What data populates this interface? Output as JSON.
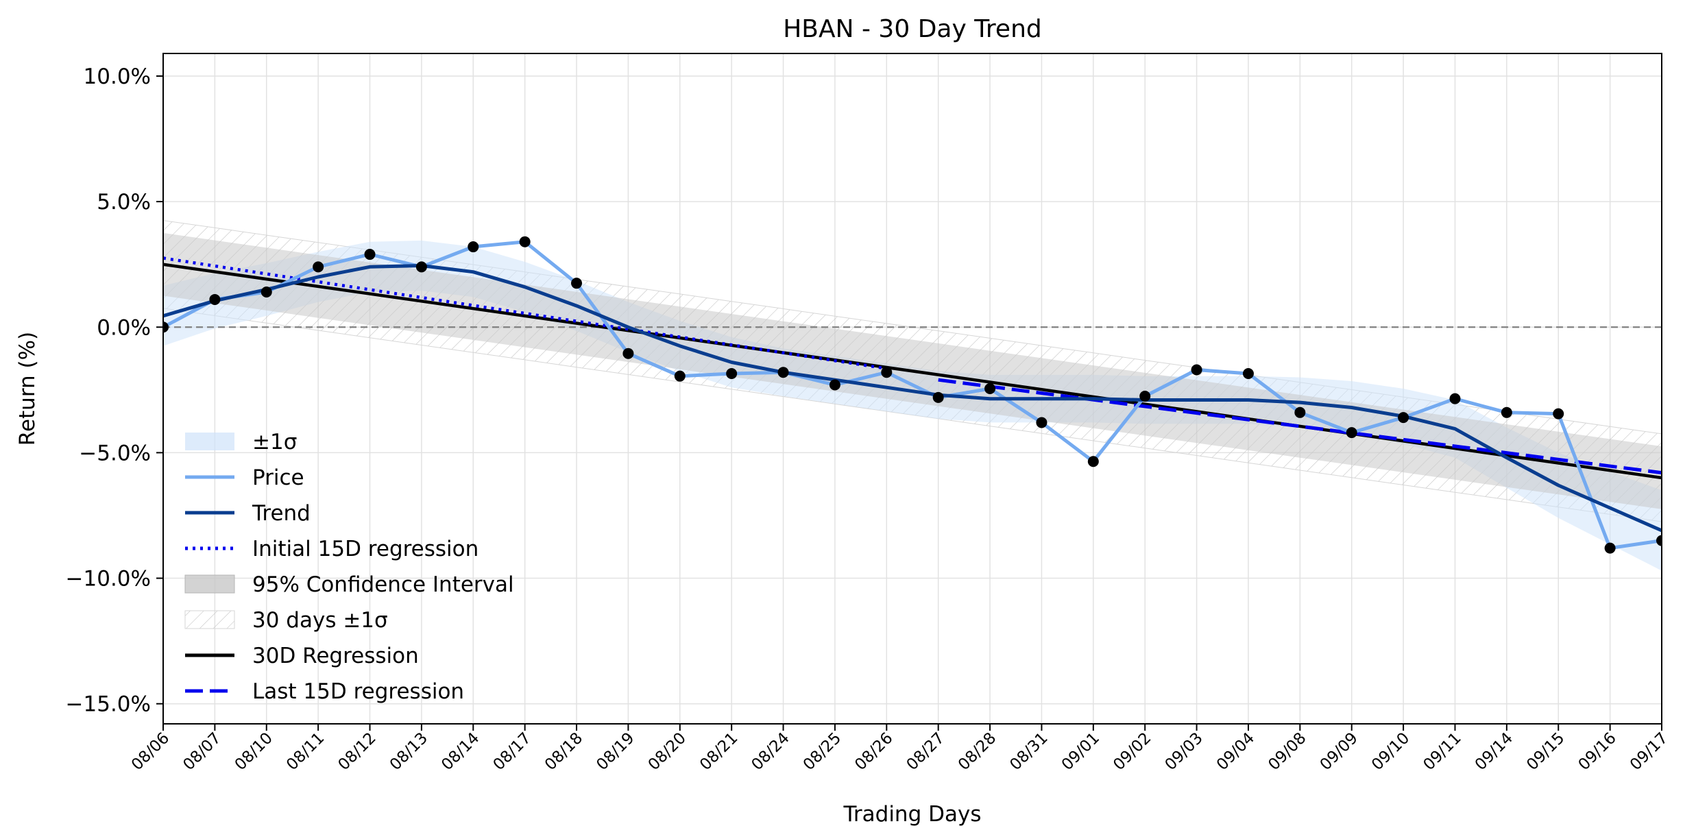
{
  "chart_data": {
    "type": "line",
    "title": "HBAN - 30 Day Trend",
    "xlabel": "Trading Days",
    "ylabel": "Return (%)",
    "categories": [
      "08/06",
      "08/07",
      "08/10",
      "08/11",
      "08/12",
      "08/13",
      "08/14",
      "08/17",
      "08/18",
      "08/19",
      "08/20",
      "08/21",
      "08/24",
      "08/25",
      "08/26",
      "08/27",
      "08/28",
      "08/31",
      "09/01",
      "09/02",
      "09/03",
      "09/04",
      "09/08",
      "09/09",
      "09/10",
      "09/11",
      "09/14",
      "09/15",
      "09/16",
      "09/17"
    ],
    "ylim": [
      -15.8,
      10.9
    ],
    "yticks": [
      10,
      5,
      0,
      -5,
      -10,
      -15
    ],
    "ytick_labels": [
      "10.0%",
      "5.0%",
      "0.0%",
      "−5.0%",
      "−10.0%",
      "−15.0%"
    ],
    "grid": true,
    "zero_line": true,
    "legend_position": "lower-left",
    "legend": [
      {
        "key": "sigma",
        "label": "±1σ"
      },
      {
        "key": "price",
        "label": "Price"
      },
      {
        "key": "trend",
        "label": "Trend"
      },
      {
        "key": "initial15",
        "label": "Initial 15D regression"
      },
      {
        "key": "ci95",
        "label": "95% Confidence Interval"
      },
      {
        "key": "band30",
        "label": "30 days ±1σ"
      },
      {
        "key": "reg30",
        "label": "30D Regression"
      },
      {
        "key": "last15",
        "label": "Last 15D regression"
      }
    ],
    "series": {
      "price": [
        0.0,
        1.1,
        1.4,
        2.4,
        2.9,
        2.4,
        3.2,
        3.4,
        1.75,
        -1.05,
        -1.95,
        -1.85,
        -1.8,
        -2.3,
        -1.8,
        -2.8,
        -2.45,
        -3.8,
        -5.35,
        -2.75,
        -1.7,
        -1.85,
        -3.4,
        -4.2,
        -3.6,
        -2.85,
        -3.4,
        -3.45,
        -8.8,
        -8.5
      ],
      "trend": [
        0.45,
        1.05,
        1.5,
        2.0,
        2.4,
        2.45,
        2.2,
        1.6,
        0.85,
        0.0,
        -0.75,
        -1.4,
        -1.8,
        -2.1,
        -2.4,
        -2.7,
        -2.85,
        -2.85,
        -2.85,
        -2.9,
        -2.9,
        -2.9,
        -3.0,
        -3.2,
        -3.55,
        -4.05,
        -5.2,
        -6.3,
        -7.2,
        -8.1
      ],
      "sigma_halfwidth": [
        1.2,
        1.1,
        1.05,
        1.0,
        1.0,
        1.0,
        1.0,
        1.0,
        1.0,
        1.0,
        1.0,
        1.0,
        0.95,
        0.95,
        0.95,
        0.95,
        0.95,
        0.95,
        0.95,
        0.95,
        0.95,
        0.95,
        1.0,
        1.05,
        1.1,
        1.15,
        1.2,
        1.3,
        1.45,
        1.6
      ],
      "reg30": {
        "start": 2.5,
        "end": -6.0
      },
      "reg30_ci_halfwidth": 1.25,
      "band30_halfwidth": 1.75,
      "initial15": {
        "x0": 0,
        "x1": 14,
        "y0": 2.75,
        "y1": -1.65
      },
      "last15": {
        "x0": 15,
        "x1": 29,
        "y0": -2.1,
        "y1": -5.8
      }
    },
    "colors": {
      "price": "#74aaf0",
      "trend": "#0a3d8f",
      "initial15": "#0000ee",
      "last15": "#0000ee",
      "reg30": "#000000",
      "sigma_fill": "#cfe3fa",
      "ci_fill": "#c8c8c8",
      "hatch": "#bfbfbf",
      "zero_line": "#808080",
      "grid": "#e2e2e2"
    }
  }
}
